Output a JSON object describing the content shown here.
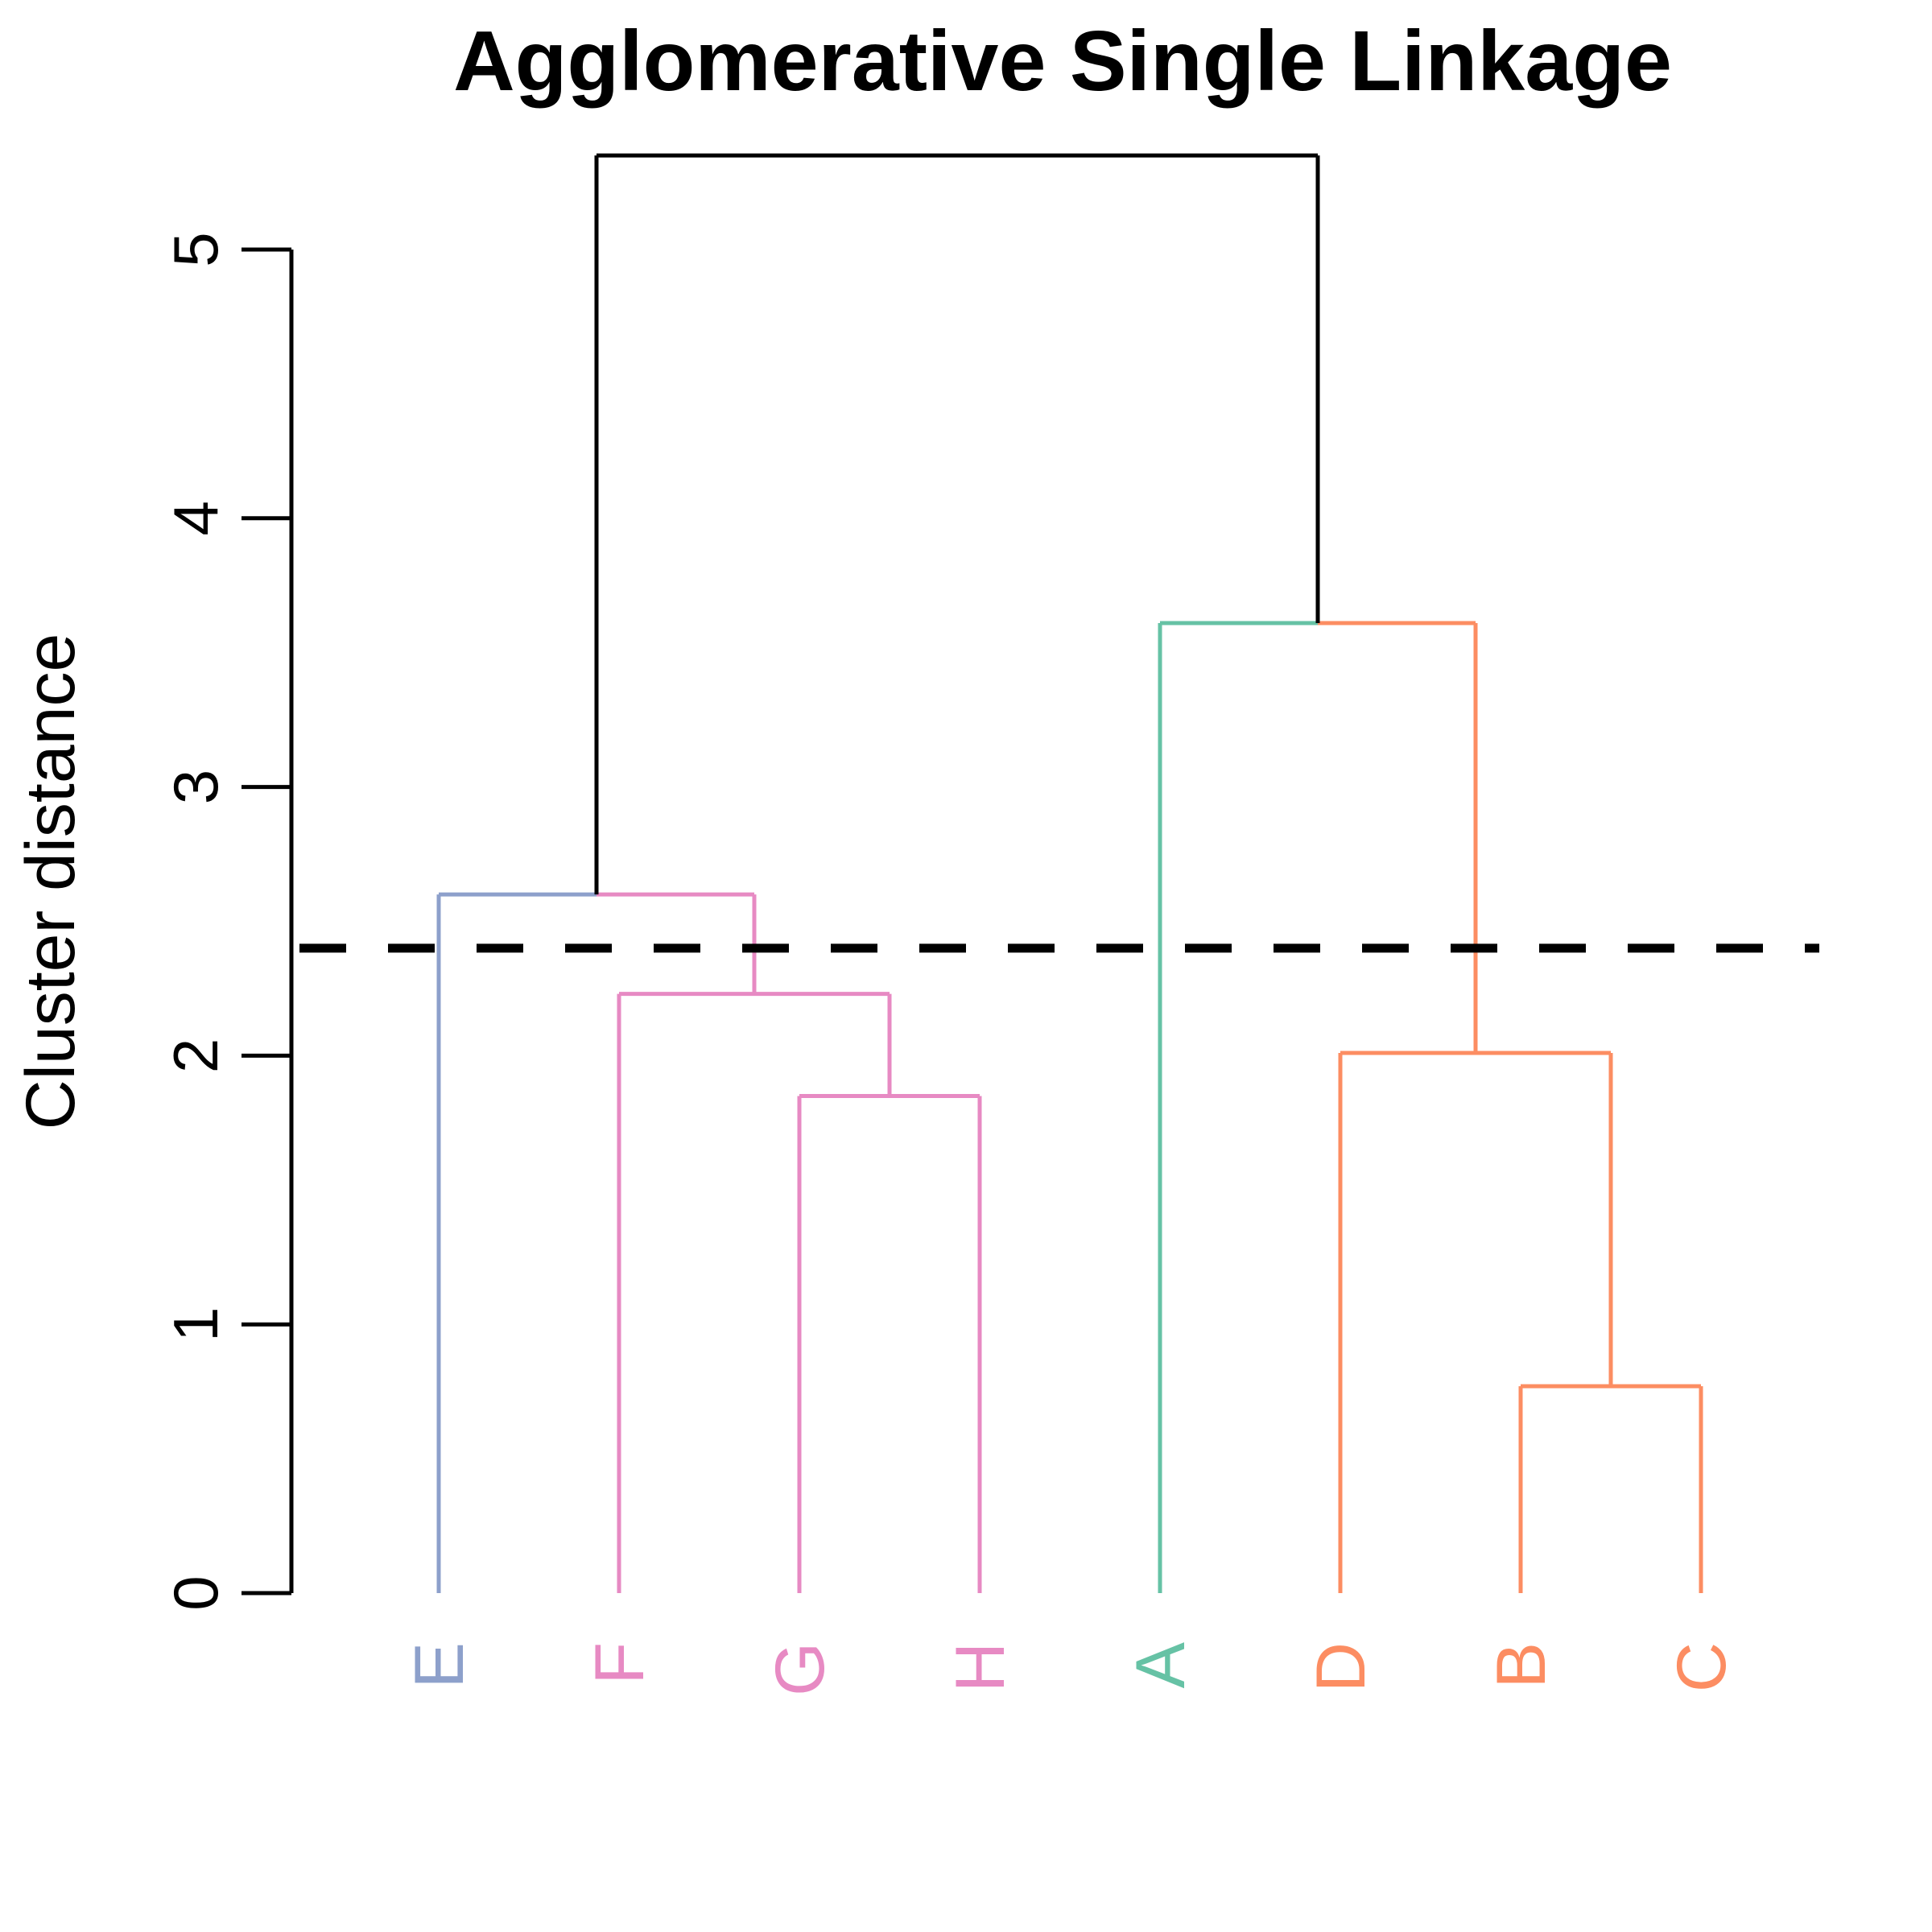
{
  "chart_data": {
    "type": "dendrogram",
    "title": "Agglomerative Single Linkage",
    "ylabel": "Cluster distance",
    "ylim": [
      0,
      5
    ],
    "y_ticks": [
      "0",
      "1",
      "2",
      "3",
      "4",
      "5"
    ],
    "leaves": [
      "E",
      "F",
      "G",
      "H",
      "A",
      "D",
      "B",
      "C"
    ],
    "leaf_colors": {
      "E": "#8DA0CB",
      "F": "#E78AC3",
      "G": "#E78AC3",
      "H": "#E78AC3",
      "A": "#66C2A5",
      "D": "#FC8D62",
      "B": "#FC8D62",
      "C": "#FC8D62"
    },
    "merges": [
      {
        "left": "B",
        "right": "C",
        "height": 0.77,
        "left_color": "#FC8D62",
        "right_color": "#FC8D62"
      },
      {
        "left": "G",
        "right": "H",
        "height": 1.85,
        "left_color": "#E78AC3",
        "right_color": "#E78AC3"
      },
      {
        "left": "D",
        "right": "B+C",
        "height": 2.01,
        "left_color": "#FC8D62",
        "right_color": "#FC8D62"
      },
      {
        "left": "F",
        "right": "G+H",
        "height": 2.23,
        "left_color": "#E78AC3",
        "right_color": "#E78AC3"
      },
      {
        "left": "E",
        "right": "F+G+H",
        "height": 2.6,
        "left_color": "#8DA0CB",
        "right_color": "#E78AC3"
      },
      {
        "left": "A",
        "right": "D+B+C",
        "height": 3.61,
        "left_color": "#66C2A5",
        "right_color": "#FC8D62"
      },
      {
        "left": "E+F+G+H",
        "right": "A+D+B+C",
        "height": 5.35,
        "left_color": "#000000",
        "right_color": "#000000"
      }
    ],
    "cut_height": 2.4,
    "cut_line_color": "#000000"
  }
}
